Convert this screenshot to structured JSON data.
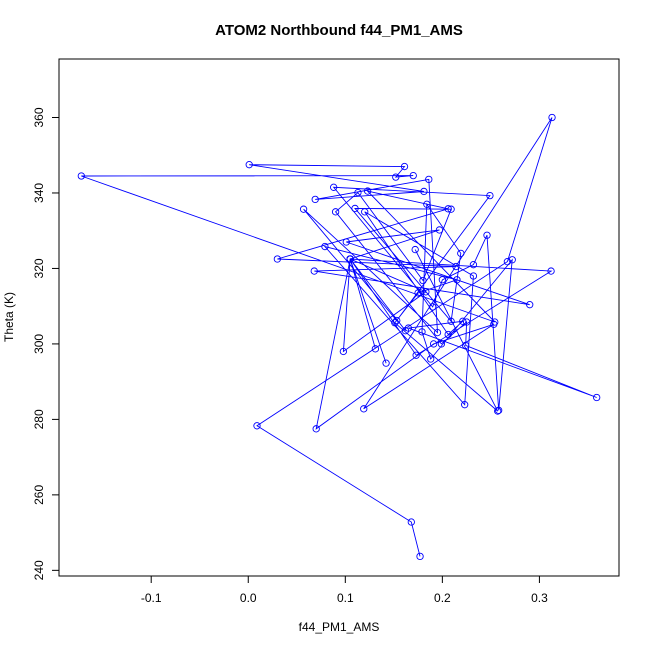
{
  "chart_data": {
    "type": "line",
    "title": "ATOM2 Northbound f44_PM1_AMS",
    "xlabel": "f44_PM1_AMS",
    "ylabel": "Theta (K)",
    "xlim": [
      -0.195,
      0.382
    ],
    "ylim": [
      238.5,
      375.5
    ],
    "xticks": [
      -0.1,
      0.0,
      0.1,
      0.2,
      0.3
    ],
    "xtick_labels": [
      "-0.1",
      "0.0",
      "0.1",
      "0.2",
      "0.3"
    ],
    "yticks": [
      240,
      260,
      280,
      300,
      320,
      340,
      360
    ],
    "ytick_labels": [
      "240",
      "260",
      "280",
      "300",
      "320",
      "340",
      "360"
    ],
    "grid": false,
    "legend": "none",
    "series_color": "#0000ff",
    "marker": "open-circle",
    "series": [
      {
        "x": [
          0.177,
          0.168,
          0.009,
          0.267,
          0.313,
          0.119,
          0.253,
          0.191,
          0.07,
          0.105,
          0.173,
          0.312,
          0.105,
          0.183,
          0.098,
          0.105,
          0.131,
          0.105,
          0.162,
          0.105,
          0.142,
          0.105,
          0.197,
          0.101,
          0.29,
          0.068,
          0.214,
          0.03,
          0.206,
          0.123,
          0.254,
          -0.172,
          0.17,
          0.152,
          0.161,
          0.001,
          0.181,
          0.069,
          0.186,
          0.195,
          0.057,
          0.153,
          0.249,
          0.088,
          0.19,
          0.2,
          0.232,
          0.246,
          0.258,
          0.272,
          0.188,
          0.179,
          0.184,
          0.219,
          0.209,
          0.11,
          0.209,
          0.18,
          0.113,
          0.09,
          0.199,
          0.225,
          0.224,
          0.359,
          0.165,
          0.221,
          0.206,
          0.12,
          0.232,
          0.223,
          0.079,
          0.215,
          0.175,
          0.151,
          0.257,
          0.172
        ],
        "y": [
          243.7,
          252.8,
          278.3,
          321.8,
          360.0,
          282.8,
          305.2,
          300.0,
          277.5,
          322.5,
          297.0,
          319.3,
          322.5,
          313.8,
          298.0,
          322.5,
          298.7,
          322.5,
          303.5,
          322.5,
          294.9,
          322.5,
          330.2,
          327.0,
          310.4,
          319.3,
          320.5,
          322.5,
          335.8,
          340.5,
          305.8,
          344.5,
          344.6,
          344.2,
          347.0,
          347.5,
          340.4,
          338.3,
          343.6,
          303.0,
          335.7,
          306.2,
          339.3,
          341.5,
          309.8,
          317.0,
          321.0,
          328.8,
          282.4,
          322.3,
          296.0,
          303.2,
          337.0,
          324.0,
          306.0,
          335.9,
          335.7,
          316.8,
          340.1,
          335.0,
          300.0,
          305.8,
          299.6,
          285.8,
          304.2,
          306.0,
          302.5,
          335.0,
          318.0,
          283.9,
          325.8,
          317.0,
          313.5,
          305.6,
          282.2,
          325.0
        ]
      }
    ]
  }
}
